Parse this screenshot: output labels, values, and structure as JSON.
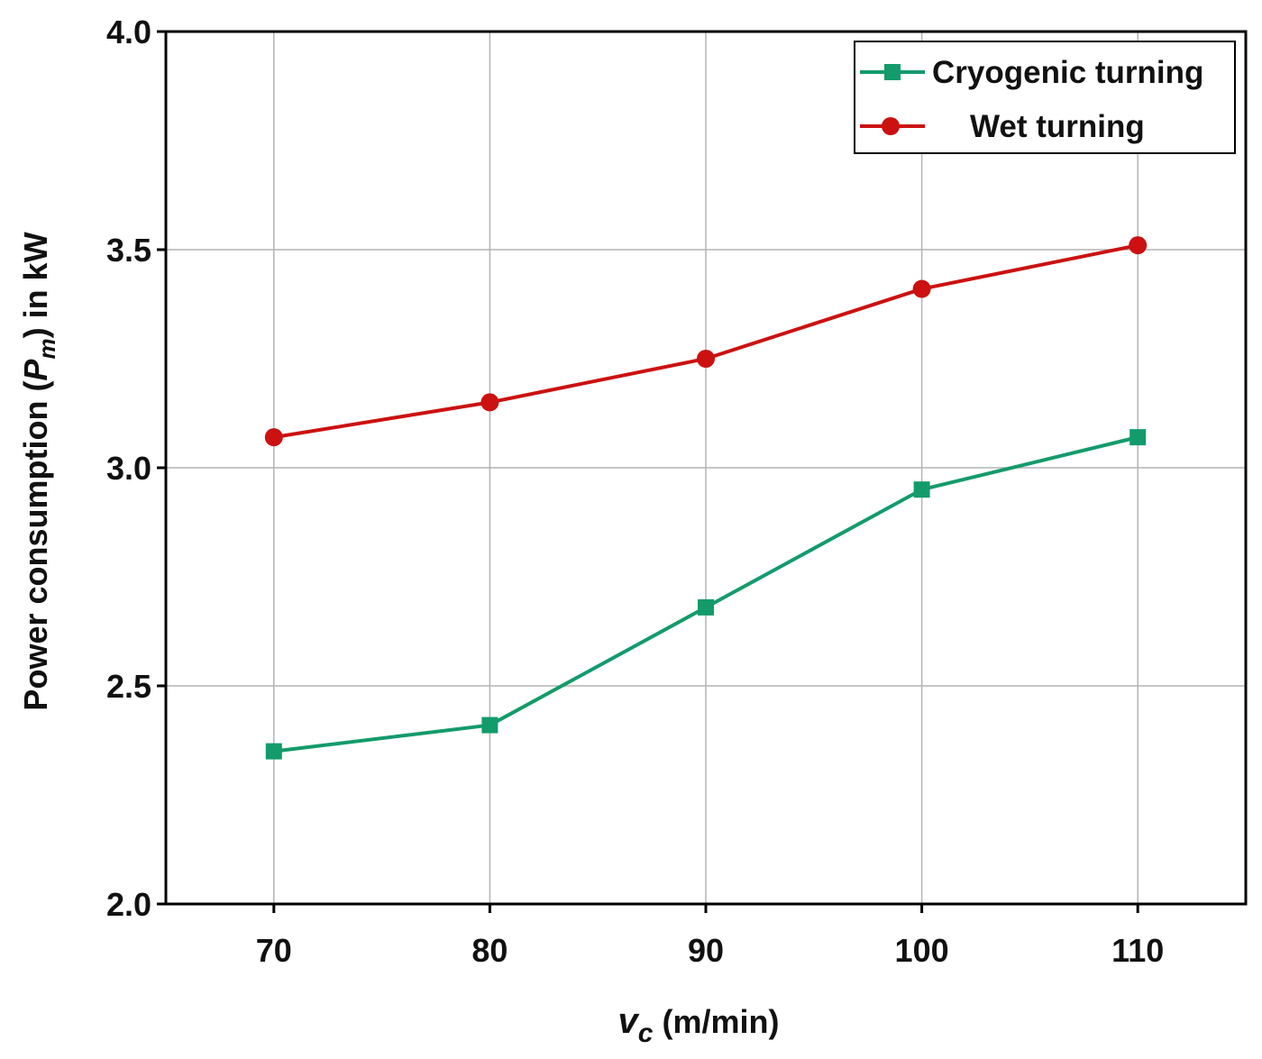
{
  "chart_data": {
    "type": "line",
    "title": "",
    "x": [
      70,
      80,
      90,
      100,
      110
    ],
    "x_tick_labels": [
      "70",
      "80",
      "90",
      "100",
      "110"
    ],
    "y_tick_labels": [
      "2.0",
      "2.5",
      "3.0",
      "3.5",
      "4.0"
    ],
    "y_ticks": [
      2.0,
      2.5,
      3.0,
      3.5,
      4.0
    ],
    "xlim": [
      65,
      115
    ],
    "ylim": [
      2.0,
      4.0
    ],
    "xlabel": {
      "main": "v",
      "sub": "c",
      "unit": " (m/min)"
    },
    "ylabel": {
      "prefix": "Power consumption (",
      "sym": "P",
      "sub": "m",
      "suffix": ") in kW"
    },
    "grid": true,
    "legend_position": "top-right",
    "series": [
      {
        "name": "Cryogenic turning",
        "color": "#139b6b",
        "marker": "square",
        "values": [
          2.35,
          2.41,
          2.68,
          2.95,
          3.07
        ]
      },
      {
        "name": "Wet turning",
        "color": "#cc1111",
        "marker": "circle",
        "values": [
          3.07,
          3.15,
          3.25,
          3.41,
          3.51
        ]
      }
    ]
  }
}
